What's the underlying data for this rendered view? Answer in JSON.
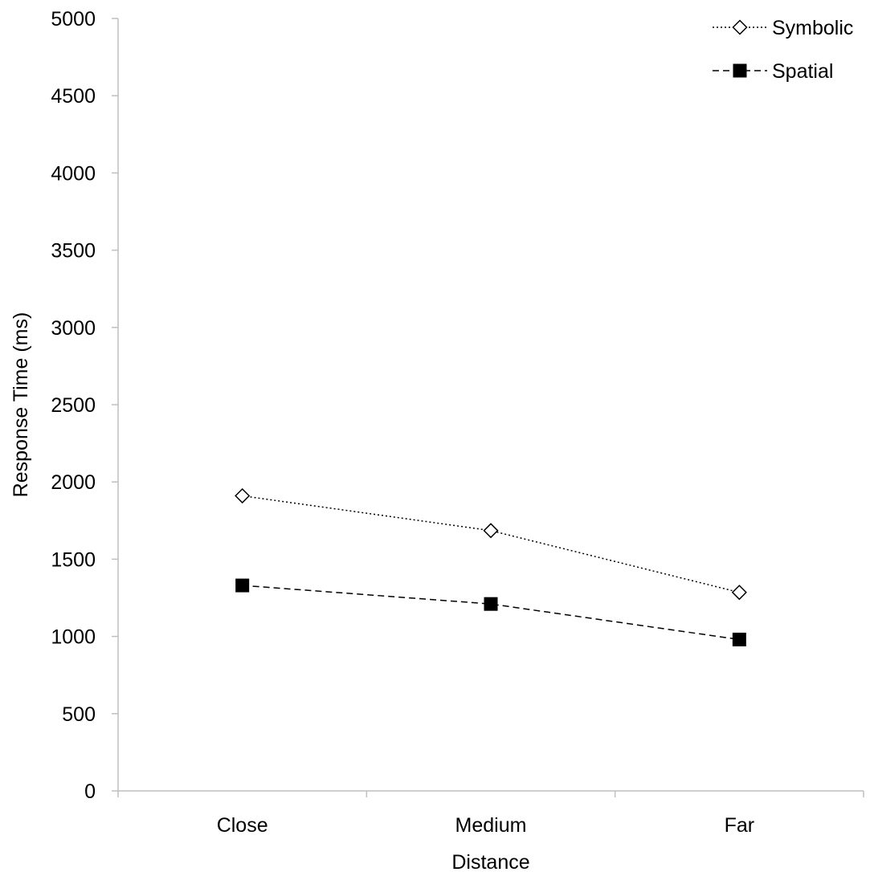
{
  "chart_data": {
    "type": "line",
    "title": "",
    "xlabel": "Distance",
    "ylabel": "Response Time (ms)",
    "categories": [
      "Close",
      "Medium",
      "Far"
    ],
    "ylim": [
      0,
      5000
    ],
    "yticks": [
      0,
      500,
      1000,
      1500,
      2000,
      2500,
      3000,
      3500,
      4000,
      4500,
      5000
    ],
    "grid": false,
    "legend_position": "top-right",
    "series": [
      {
        "name": "Symbolic",
        "values": [
          1910,
          1685,
          1285
        ],
        "marker": "diamond-open",
        "line_style": "dotted",
        "color": "#000000"
      },
      {
        "name": "Spatial",
        "values": [
          1330,
          1210,
          980
        ],
        "marker": "square-filled",
        "line_style": "dashed",
        "color": "#000000"
      }
    ]
  }
}
